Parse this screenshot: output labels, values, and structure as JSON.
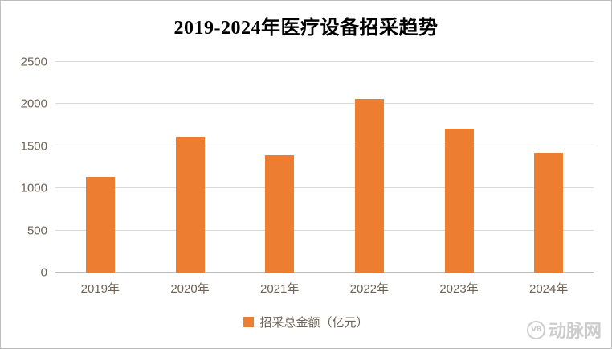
{
  "title": "2019-2024年医疗设备招采趋势",
  "legend": {
    "label": "招采总金额（亿元）"
  },
  "watermark": {
    "logo": "VB",
    "text": "动脉网"
  },
  "colors": {
    "bar": "#ED7D31",
    "grid": "#D9D9D9",
    "axis_line": "#BFBFBF",
    "axis_text": "#6e6355",
    "watermark": "#cccccc",
    "border": "#bdbdbd"
  },
  "chart_data": {
    "type": "bar",
    "title": "2019-2024年医疗设备招采趋势",
    "categories": [
      "2019年",
      "2020年",
      "2021年",
      "2022年",
      "2023年",
      "2024年"
    ],
    "series": [
      {
        "name": "招采总金额（亿元）",
        "values": [
          1140,
          1610,
          1390,
          2060,
          1710,
          1420
        ]
      }
    ],
    "xlabel": "",
    "ylabel": "",
    "ylim": [
      0,
      2500
    ],
    "ytick_step": 500,
    "yticks": [
      0,
      500,
      1000,
      1500,
      2000,
      2500
    ],
    "grid": true,
    "legend_position": "bottom"
  }
}
